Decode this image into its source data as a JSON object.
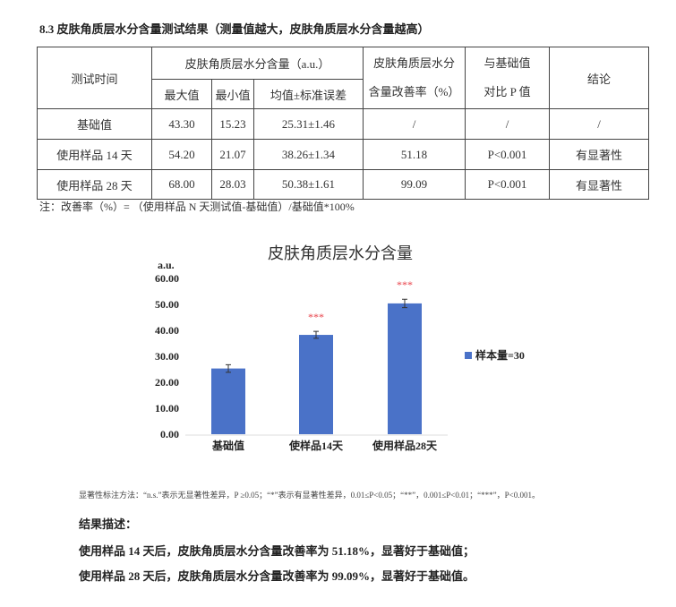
{
  "section_title": "8.3 皮肤角质层水分含量测试结果（测量值越大，皮肤角质层水分含量越高）",
  "table": {
    "header": {
      "time": "测试时间",
      "moisture_group": "皮肤角质层水分含量（a.u.）",
      "max": "最大值",
      "min": "最小值",
      "mean_se": "均值±标准误差",
      "improvement": [
        "皮肤角质层水分",
        "含量改善率（%）"
      ],
      "p_value": [
        "与基础值",
        "对比 P 值"
      ],
      "conclusion": "结论"
    },
    "rows": [
      {
        "time": "基础值",
        "max": "43.30",
        "min": "15.23",
        "mean_se": "25.31±1.46",
        "improvement": "/",
        "p": "/",
        "conclusion": "/"
      },
      {
        "time": "使用样品 14 天",
        "max": "54.20",
        "min": "21.07",
        "mean_se": "38.26±1.34",
        "improvement": "51.18",
        "p": "P<0.001",
        "conclusion": "有显著性"
      },
      {
        "time": "使用样品 28 天",
        "max": "68.00",
        "min": "28.03",
        "mean_se": "50.38±1.61",
        "improvement": "99.09",
        "p": "P<0.001",
        "conclusion": "有显著性"
      }
    ]
  },
  "note": "注：改善率（%）= （使用样品 N 天测试值-基础值）/基础值*100%",
  "chart_data": {
    "type": "bar",
    "title": "皮肤角质层水分含量",
    "ylabel": "a.u.",
    "ylim": [
      0,
      60
    ],
    "yticks": [
      "0.00",
      "10.00",
      "20.00",
      "30.00",
      "40.00",
      "50.00",
      "60.00"
    ],
    "categories": [
      "基础值",
      "使样品14天",
      "使用样品28天"
    ],
    "series": [
      {
        "name": "样本量=30",
        "values": [
          25.31,
          38.26,
          50.38
        ],
        "errors": [
          1.46,
          1.34,
          1.61
        ]
      }
    ],
    "annotations": [
      "",
      "***",
      "***"
    ],
    "legend": "right",
    "grid": false,
    "bar_color": "#4a72c8",
    "annotation_color": "#e8424a"
  },
  "significance_note": "显著性标注方法：“n.s.”表示无显著性差异，P ≥0.05；“*”表示有显著性差异，0.01≤P<0.05；“**”，0.001≤P<0.01；“***”，P<0.001。",
  "results": {
    "heading": "结果描述：",
    "lines": [
      "使用样品 14 天后，皮肤角质层水分含量改善率为 51.18%，显著好于基础值；",
      "使用样品 28 天后，皮肤角质层水分含量改善率为 99.09%，显著好于基础值。"
    ]
  }
}
